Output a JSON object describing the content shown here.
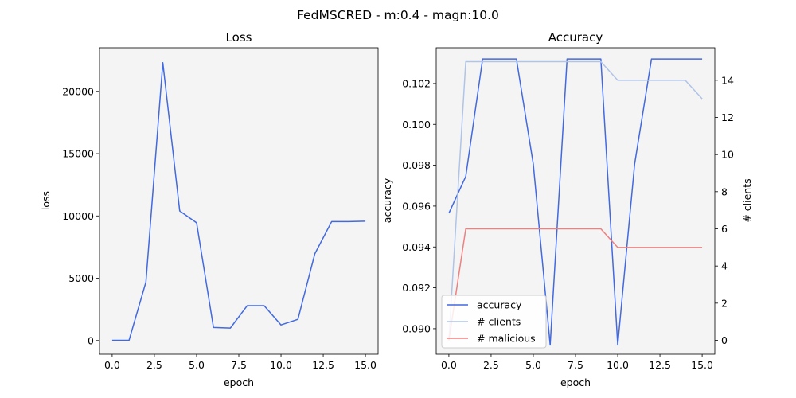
{
  "suptitle": "FedMSCRED - m:0.4 - magn:10.0",
  "chart_data": [
    {
      "type": "line",
      "title": "Loss",
      "xlabel": "epoch",
      "ylabel": "loss",
      "xlim": [
        -0.75,
        15.75
      ],
      "ylim": [
        -1100,
        23500
      ],
      "xticks": [
        0.0,
        2.5,
        5.0,
        7.5,
        10.0,
        12.5,
        15.0
      ],
      "xtick_labels": [
        "0.0",
        "2.5",
        "5.0",
        "7.5",
        "10.0",
        "12.5",
        "15.0"
      ],
      "yticks": [
        0,
        5000,
        10000,
        15000,
        20000
      ],
      "ytick_labels": [
        "0",
        "5000",
        "10000",
        "15000",
        "20000"
      ],
      "grid": false,
      "series": [
        {
          "color": "#4169e1",
          "x": [
            0,
            1,
            2,
            3,
            4,
            5,
            6,
            7,
            8,
            9,
            10,
            11,
            12,
            13,
            14,
            15
          ],
          "values": [
            20,
            20,
            4700,
            22300,
            10400,
            9450,
            1050,
            1000,
            2800,
            2800,
            1250,
            1700,
            6950,
            9550,
            9550,
            9580
          ]
        }
      ]
    },
    {
      "type": "line",
      "title": "Accuracy",
      "xlabel": "epoch",
      "ylabel": "accuracy",
      "y2label": "# clients",
      "xlim": [
        -0.75,
        15.75
      ],
      "ylim": [
        0.08875,
        0.10375
      ],
      "y2lim": [
        -0.75,
        15.75
      ],
      "xticks": [
        0.0,
        2.5,
        5.0,
        7.5,
        10.0,
        12.5,
        15.0
      ],
      "xtick_labels": [
        "0.0",
        "2.5",
        "5.0",
        "7.5",
        "10.0",
        "12.5",
        "15.0"
      ],
      "yticks": [
        0.09,
        0.092,
        0.094,
        0.096,
        0.098,
        0.1,
        0.102
      ],
      "ytick_labels": [
        "0.090",
        "0.092",
        "0.094",
        "0.096",
        "0.098",
        "0.100",
        "0.102"
      ],
      "y2ticks": [
        0,
        2,
        4,
        6,
        8,
        10,
        12,
        14
      ],
      "y2tick_labels": [
        "0",
        "2",
        "4",
        "6",
        "8",
        "10",
        "12",
        "14"
      ],
      "grid": false,
      "legend": "lower-left",
      "series": [
        {
          "name": "accuracy",
          "axis": "left",
          "color": "#4169e1",
          "x": [
            0,
            1,
            2,
            3,
            4,
            5,
            6,
            7,
            8,
            9,
            10,
            11,
            12,
            13,
            14,
            15
          ],
          "values": [
            0.09565,
            0.09745,
            0.1032,
            0.1032,
            0.1032,
            0.09805,
            0.0892,
            0.1032,
            0.1032,
            0.1032,
            0.0892,
            0.09805,
            0.1032,
            0.1032,
            0.1032,
            0.1032
          ]
        },
        {
          "name": "# clients",
          "axis": "right",
          "color": "#b0c4e8",
          "x": [
            0,
            1,
            2,
            3,
            4,
            5,
            6,
            7,
            8,
            9,
            10,
            11,
            12,
            13,
            14,
            15
          ],
          "values": [
            0,
            15,
            15,
            15,
            15,
            15,
            15,
            15,
            15,
            15,
            14,
            14,
            14,
            14,
            14,
            13
          ]
        },
        {
          "name": "# malicious",
          "axis": "right",
          "color": "#f08080",
          "x": [
            0,
            1,
            2,
            3,
            4,
            5,
            6,
            7,
            8,
            9,
            10,
            11,
            12,
            13,
            14,
            15
          ],
          "values": [
            0,
            6,
            6,
            6,
            6,
            6,
            6,
            6,
            6,
            6,
            5,
            5,
            5,
            5,
            5,
            5
          ]
        }
      ]
    }
  ]
}
